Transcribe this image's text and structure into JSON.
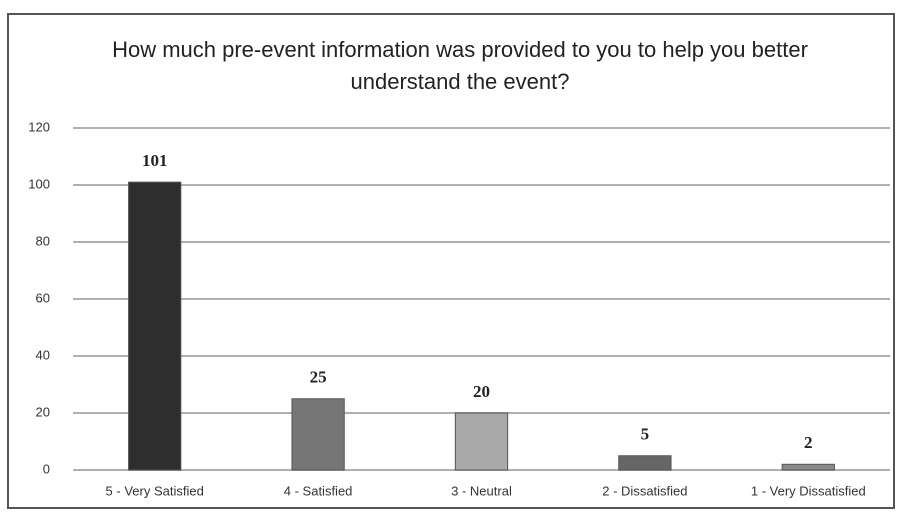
{
  "chart_data": {
    "type": "bar",
    "title": "How much pre-event information was provided to you to help you better understand the event?",
    "categories": [
      "5 - Very Satisfied",
      "4 - Satisfied",
      "3 - Neutral",
      "2 - Dissatisfied",
      "1 - Very Dissatisfied"
    ],
    "values": [
      101,
      25,
      20,
      5,
      2
    ],
    "colors": [
      "#2e2e2e",
      "#767676",
      "#a9a9a9",
      "#666666",
      "#8a8a8a"
    ],
    "ylim": [
      0,
      120
    ],
    "yticks": [
      0,
      20,
      40,
      60,
      80,
      100,
      120
    ],
    "grid": true
  }
}
